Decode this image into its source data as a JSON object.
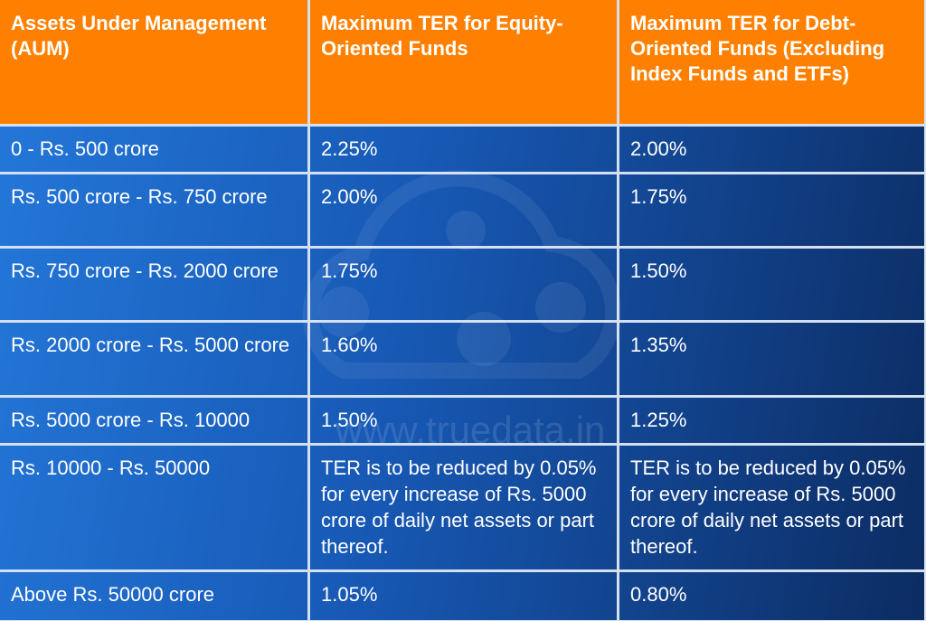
{
  "table": {
    "header": [
      "Assets Under Management (AUM)",
      "Maximum TER for Equity-Oriented Funds",
      "Maximum TER for Debt-Oriented Funds (Excluding Index Funds and ETFs)"
    ],
    "rows": [
      [
        "0 - Rs. 500 crore",
        "2.25%",
        "2.00%"
      ],
      [
        "Rs. 500 crore - Rs. 750 crore",
        "2.00%",
        "1.75%"
      ],
      [
        "Rs. 750 crore - Rs. 2000 crore",
        "1.75%",
        "1.50%"
      ],
      [
        "Rs. 2000 crore - Rs. 5000 crore",
        "1.60%",
        "1.35%"
      ],
      [
        "Rs. 5000 crore - Rs. 10000",
        "1.50%",
        "1.25%"
      ],
      [
        "Rs. 10000 - Rs. 50000",
        "TER is to be reduced by 0.05% for every increase of Rs. 5000 crore of daily net assets or part thereof.",
        "TER is to be reduced by 0.05% for every increase of Rs. 5000 crore of daily net assets or part thereof."
      ],
      [
        "Above Rs. 50000 crore",
        "1.05%",
        "0.80%"
      ]
    ]
  },
  "watermark": "www.truedata.in"
}
